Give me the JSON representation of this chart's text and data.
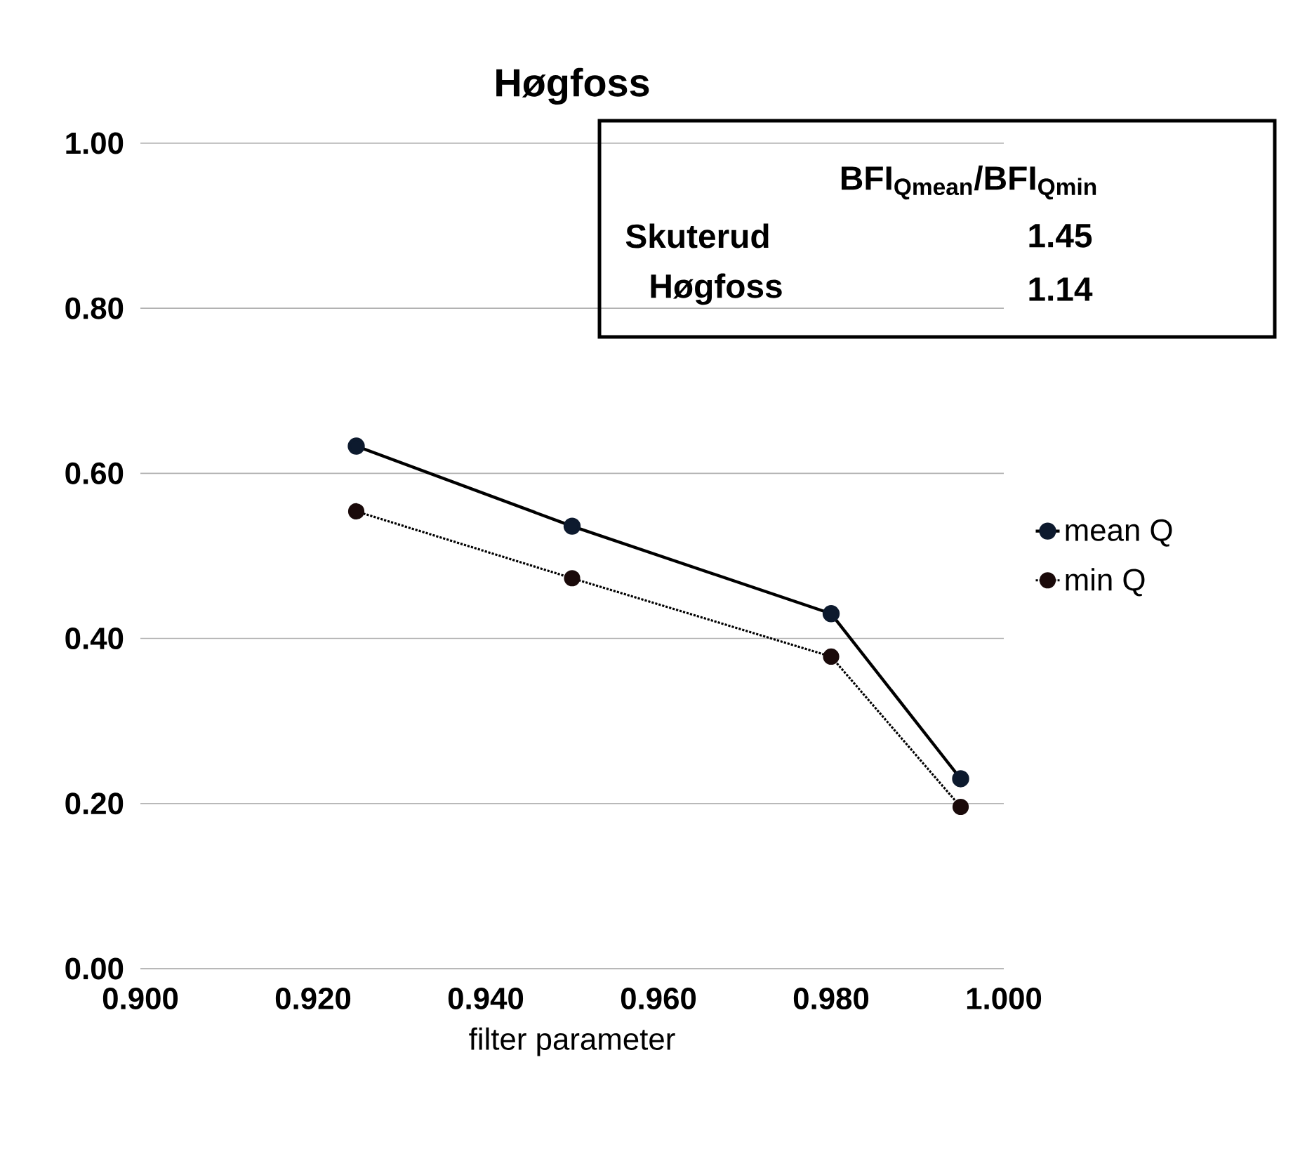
{
  "chart_data": {
    "type": "line",
    "title": "Høgfoss",
    "xlabel": "filter parameter",
    "x": [
      0.925,
      0.95,
      0.98,
      0.995
    ],
    "series": [
      {
        "name": "mean Q",
        "color": "#0d1a2e",
        "values": [
          0.633,
          0.536,
          0.43,
          0.23
        ],
        "line_style": "solid"
      },
      {
        "name": "min Q",
        "color": "#1a0a0a",
        "values": [
          0.554,
          0.473,
          0.378,
          0.196
        ],
        "line_style": "dotted"
      }
    ],
    "xlim": [
      0.9,
      1.0
    ],
    "xticks": [
      {
        "value": 0.9,
        "label": "0.900"
      },
      {
        "value": 0.92,
        "label": "0.920"
      },
      {
        "value": 0.94,
        "label": "0.940"
      },
      {
        "value": 0.96,
        "label": "0.960"
      },
      {
        "value": 0.98,
        "label": "0.980"
      },
      {
        "value": 1.0,
        "label": "1.000"
      }
    ],
    "ylim": [
      0,
      1.0
    ],
    "yticks": [
      {
        "value": 0,
        "label": "0.00"
      },
      {
        "value": 0.2,
        "label": "0.20"
      },
      {
        "value": 0.4,
        "label": "0.40"
      },
      {
        "value": 0.6,
        "label": "0.60"
      },
      {
        "value": 0.8,
        "label": "0.80"
      },
      {
        "value": 1.0,
        "label": "1.00"
      }
    ],
    "grid": "y",
    "legend": "right",
    "marker": "circle",
    "annotations": [
      "BFI$_{Qmean}$/BFI$_{Qmin}$",
      "Skuterud",
      "1.45",
      "Høgfoss",
      "1.14"
    ]
  }
}
